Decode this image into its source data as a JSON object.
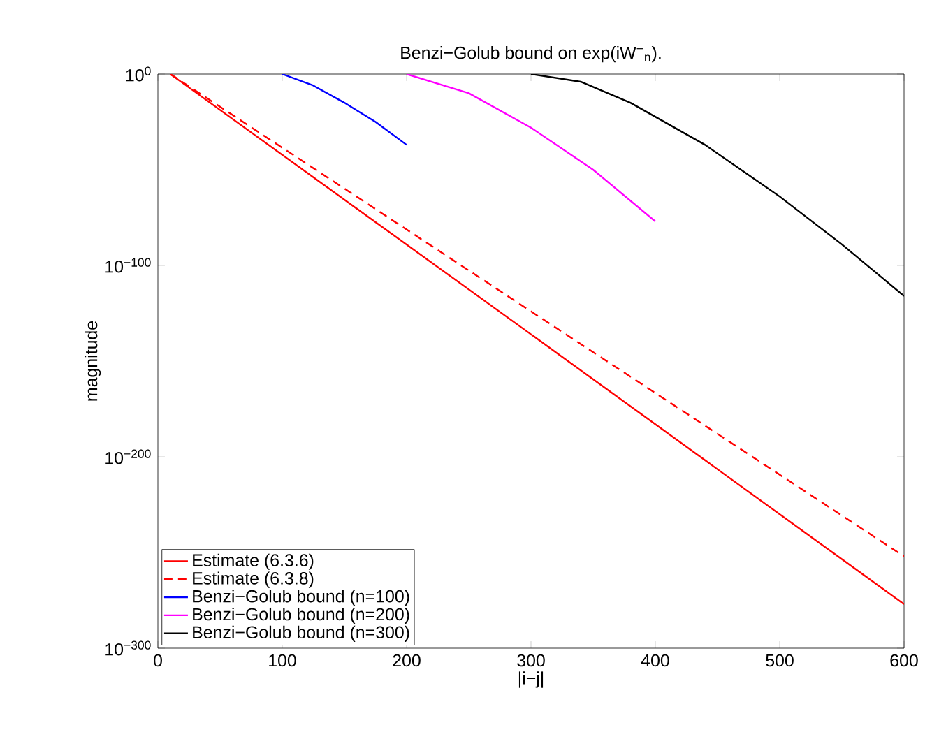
{
  "chart_data": {
    "type": "line",
    "title": "Benzi−Golub bound on exp(iW$^{−}$$_{n}$).",
    "xlabel": "|i−j|",
    "ylabel": "magnitude",
    "log": "y",
    "xlim": [
      0,
      600
    ],
    "xticks": [
      0,
      100,
      200,
      300,
      400,
      500,
      600
    ],
    "ylim": [
      1e-300,
      1
    ],
    "yticks": [
      {
        "value": 1,
        "label": "10$^{0}$"
      },
      {
        "value": 1e-100,
        "label": "10$^{−100}$"
      },
      {
        "value": 1e-200,
        "label": "10$^{−200}$"
      },
      {
        "value": 1e-300,
        "label": "10$^{−300}$"
      }
    ],
    "grid": false,
    "legend": "bottom left",
    "series": [
      {
        "name": "Estimate (6.3.6)",
        "color": "#ff0000",
        "line_style": "solid",
        "x": [
          10,
          300,
          600
        ],
        "values": [
          1,
          1e-136,
          1e-277
        ]
      },
      {
        "name": "Estimate (6.3.8)",
        "color": "#ff0000",
        "line_style": "dashed",
        "x": [
          10,
          300,
          600
        ],
        "values": [
          1,
          1e-124,
          1e-252
        ]
      },
      {
        "name": "Benzi−Golub bound (n=100)",
        "color": "#0000ff",
        "line_style": "solid",
        "x": [
          100,
          125,
          150,
          175,
          200
        ],
        "values": [
          1,
          1e-06,
          1e-15,
          1e-25,
          1e-37
        ]
      },
      {
        "name": "Benzi−Golub bound (n=200)",
        "color": "#ff00ff",
        "line_style": "solid",
        "x": [
          200,
          250,
          300,
          350,
          400
        ],
        "values": [
          1,
          1e-10,
          1e-28,
          1e-50,
          1e-77
        ]
      },
      {
        "name": "Benzi−Golub bound (n=300)",
        "color": "#000000",
        "line_style": "solid",
        "x": [
          300,
          340,
          380,
          440,
          500,
          550,
          600
        ],
        "values": [
          1,
          0.0001,
          1e-15,
          1e-37,
          1e-64,
          1e-89,
          1e-116
        ]
      }
    ]
  }
}
